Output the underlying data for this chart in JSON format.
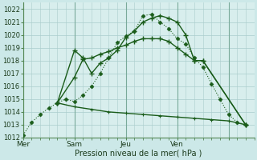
{
  "background_color": "#cce8e8",
  "grid_color": "#aacccc",
  "plot_bg": "#d8eeed",
  "line_dark": "#1a5c1a",
  "line_med": "#2d6b2d",
  "title": "Pression niveau de la mer( hPa )",
  "ylim": [
    1012,
    1022.5
  ],
  "yticks": [
    1012,
    1013,
    1014,
    1015,
    1016,
    1017,
    1018,
    1019,
    1020,
    1021,
    1022
  ],
  "day_x": [
    0,
    3,
    6,
    9,
    12
  ],
  "day_labels": [
    "Mer",
    "Sam",
    "Jeu",
    "Ven",
    ""
  ],
  "xlim": [
    0,
    13.5
  ],
  "line1_x": [
    0,
    0.5,
    1,
    1.5,
    2,
    2.5,
    3,
    3.5,
    4,
    4.5,
    5,
    5.5,
    6,
    6.5,
    7,
    7.5,
    8,
    8.5,
    9,
    9.5,
    10,
    10.5,
    11,
    11.5,
    12,
    12.5,
    13
  ],
  "line1_y": [
    1012.2,
    1013.2,
    1013.8,
    1014.3,
    1014.7,
    1015.0,
    1014.8,
    1015.3,
    1016.0,
    1017.0,
    1018.2,
    1019.4,
    1019.9,
    1020.3,
    1021.5,
    1021.6,
    1021.0,
    1020.5,
    1019.7,
    1019.3,
    1018.2,
    1017.5,
    1016.2,
    1015.0,
    1013.8,
    1013.2,
    1013.0
  ],
  "line2_x": [
    2,
    3,
    3.5,
    4,
    4.5,
    5,
    5.5,
    6,
    6.5,
    7,
    7.5,
    8,
    8.5,
    9,
    9.5,
    10,
    10.5,
    13
  ],
  "line2_y": [
    1014.7,
    1018.8,
    1018.2,
    1017.0,
    1017.8,
    1018.2,
    1018.8,
    1019.8,
    1020.3,
    1021.0,
    1021.3,
    1021.5,
    1021.3,
    1021.0,
    1020.0,
    1018.0,
    1018.0,
    1013.0
  ],
  "line3_x": [
    2,
    3,
    3.5,
    4,
    4.5,
    5,
    5.5,
    6,
    6.5,
    7,
    7.5,
    8,
    8.5,
    9,
    9.5,
    10,
    10.5,
    13
  ],
  "line3_y": [
    1014.7,
    1016.7,
    1018.1,
    1018.2,
    1018.5,
    1018.7,
    1019.0,
    1019.2,
    1019.5,
    1019.7,
    1019.7,
    1019.7,
    1019.5,
    1019.0,
    1018.5,
    1018.0,
    1018.0,
    1013.0
  ],
  "line4_x": [
    2,
    3,
    4,
    5,
    6,
    7,
    8,
    9,
    10,
    11,
    12,
    13
  ],
  "line4_y": [
    1014.7,
    1014.4,
    1014.2,
    1014.0,
    1013.9,
    1013.8,
    1013.7,
    1013.6,
    1013.5,
    1013.4,
    1013.3,
    1013.0
  ]
}
